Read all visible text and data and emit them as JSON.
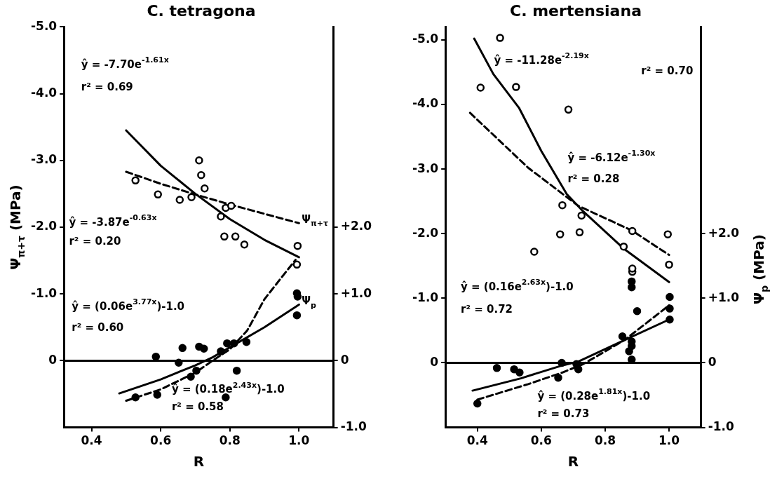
{
  "chart_data": [
    {
      "type": "scatter",
      "title": "C. tetragona",
      "xlabel": "R",
      "ylabel": "Ψ$_{π+τ}$ (MPa)",
      "xlim": [
        0.32,
        1.1
      ],
      "xticks": [
        0.4,
        0.6,
        0.8,
        {
          "value": 1.0,
          "label": "1.0"
        }
      ],
      "ylim": [
        1,
        -5
      ],
      "yticks": [
        {
          "value": -5,
          "label": "-5.0"
        },
        {
          "value": -4,
          "label": "-4.0"
        },
        {
          "value": -3,
          "label": "-3.0"
        },
        {
          "value": -2,
          "label": "-2.0"
        },
        {
          "value": -1,
          "label": "-1.0"
        },
        0
      ],
      "y2lim": [
        -1,
        5
      ],
      "y2ticks": [
        {
          "value": -1,
          "label": "-1.0"
        },
        0,
        {
          "value": 1,
          "label": "+1.0"
        },
        {
          "value": 2,
          "label": "+2.0"
        }
      ],
      "grid": false,
      "legend": false,
      "ref_lines": [
        {
          "axis": "y",
          "value": 0
        }
      ],
      "series": [
        {
          "type": "scatter",
          "color": "#000000",
          "marker": "circle",
          "x": [
            0.527,
            0.592,
            0.655,
            0.689,
            0.711,
            0.717,
            0.727,
            0.774,
            0.788,
            0.804,
            0.784,
            0.816,
            0.842,
            0.996,
            0.994
          ],
          "values": [
            -2.7,
            -2.49,
            -2.41,
            -2.45,
            -3.0,
            -2.78,
            -2.58,
            -2.16,
            -2.29,
            -2.32,
            -1.86,
            -1.86,
            -1.74,
            -1.72,
            -1.44
          ]
        },
        {
          "type": "scatter",
          "axis": "y2",
          "color": "#000000",
          "marker": "circle",
          "x": [
            0.586,
            0.652,
            0.663,
            0.711,
            0.725,
            0.774,
            0.792,
            0.812,
            0.848,
            0.82,
            0.788,
            0.687,
            0.703,
            0.59,
            0.527,
            0.994,
            0.996,
            0.994
          ],
          "values": [
            0.06,
            -0.03,
            0.19,
            0.21,
            0.18,
            0.14,
            0.26,
            0.26,
            0.28,
            -0.15,
            -0.55,
            -0.24,
            -0.15,
            -0.51,
            -0.55,
            1.01,
            0.96,
            0.68
          ]
        },
        {
          "type": "line",
          "color": "#000000",
          "marker": "none",
          "line_style": "solid",
          "x": [
            0.5,
            0.6,
            0.7,
            0.8,
            0.9,
            1.0
          ],
          "values": [
            -3.45,
            -2.92,
            -2.5,
            -2.12,
            -1.81,
            -1.55
          ]
        },
        {
          "type": "line",
          "name": "Ψ$_{π+τ}$",
          "color": "#000000",
          "marker": "none",
          "line_style": "dashed",
          "x": [
            0.5,
            0.6,
            0.7,
            0.8,
            0.9,
            1.0
          ],
          "values": [
            -2.83,
            -2.65,
            -2.49,
            -2.34,
            -2.2,
            -2.06
          ]
        },
        {
          "type": "line",
          "name": "Ψ$_{p}$",
          "axis": "y2",
          "color": "#000000",
          "marker": "none",
          "line_style": "solid",
          "x": [
            0.48,
            0.6,
            0.7,
            0.75,
            0.8,
            0.9,
            1.0
          ],
          "values": [
            -0.49,
            -0.28,
            -0.07,
            0.05,
            0.2,
            0.5,
            0.84
          ]
        },
        {
          "type": "line",
          "axis": "y2",
          "color": "#000000",
          "marker": "none",
          "line_style": "dashed",
          "x": [
            0.5,
            0.6,
            0.7,
            0.75,
            0.8,
            0.85,
            0.9,
            0.95,
            0.99
          ],
          "values": [
            -0.6,
            -0.43,
            -0.18,
            0.0,
            0.17,
            0.45,
            0.92,
            1.25,
            1.51
          ]
        }
      ],
      "annotations": [
        "ŷ = -7.70e$^{-1.61x}$",
        "r² = 0.69",
        "ŷ = -3.87e$^{-0.63x}$",
        "r² = 0.20",
        "ŷ = (0.06e$^{3.77x}$)-1.0",
        "r² = 0.60",
        "ŷ = (0.18e$^{2.43x}$)-1.0",
        "r² = 0.58"
      ]
    },
    {
      "type": "scatter",
      "title": "C. mertensiana",
      "xlabel": "R",
      "y2label": "Ψ$_{p}$ (MPa)",
      "xlim": [
        0.3,
        1.1
      ],
      "xticks": [
        0.4,
        0.6,
        0.8,
        {
          "value": 1.0,
          "label": "1.0"
        }
      ],
      "ylim": [
        1,
        -5.2
      ],
      "yticks": [
        {
          "value": -5,
          "label": "-5.0"
        },
        {
          "value": -4,
          "label": "-4.0"
        },
        {
          "value": -3,
          "label": "-3.0"
        },
        {
          "value": -2,
          "label": "-2.0"
        },
        {
          "value": -1,
          "label": "-1.0"
        },
        0
      ],
      "y2lim": [
        -1,
        5.2
      ],
      "y2ticks": [
        {
          "value": -1,
          "label": "-1.0"
        },
        0,
        {
          "value": 1,
          "label": "+1.0"
        },
        {
          "value": 2,
          "label": "+2.0"
        }
      ],
      "grid": false,
      "legend": false,
      "ref_lines": [
        {
          "axis": "y",
          "value": 0
        }
      ],
      "series": [
        {
          "type": "scatter",
          "color": "#000000",
          "marker": "circle",
          "x": [
            0.471,
            0.41,
            0.521,
            0.685,
            0.666,
            0.726,
            0.659,
            0.72,
            0.578,
            0.858,
            0.996,
            1.0,
            0.885,
            0.885,
            0.885
          ],
          "values": [
            -5.03,
            -4.26,
            -4.27,
            -3.92,
            -2.44,
            -2.28,
            -1.99,
            -2.02,
            -1.72,
            -1.8,
            -1.99,
            -1.52,
            -1.41,
            -1.46,
            -2.04
          ]
        },
        {
          "type": "scatter",
          "axis": "y2",
          "color": "#000000",
          "marker": "circle",
          "x": [
            0.883,
            0.883,
            0.9,
            1.002,
            1.002,
            1.002,
            0.854,
            0.883,
            0.883,
            0.875,
            0.883,
            0.664,
            0.716,
            0.71,
            0.461,
            0.515,
            0.532,
            0.653,
            0.4
          ],
          "values": [
            1.26,
            1.17,
            0.8,
            1.02,
            0.84,
            0.67,
            0.41,
            0.33,
            0.26,
            0.18,
            0.05,
            0.0,
            -0.1,
            -0.02,
            -0.08,
            -0.1,
            -0.15,
            -0.23,
            -0.63
          ]
        },
        {
          "type": "line",
          "color": "#000000",
          "marker": "none",
          "line_style": "solid",
          "x": [
            0.39,
            0.45,
            0.53,
            0.6,
            0.68,
            0.73,
            0.86,
            1.0
          ],
          "values": [
            -5.02,
            -4.47,
            -3.95,
            -3.28,
            -2.61,
            -2.35,
            -1.76,
            -1.25
          ]
        },
        {
          "type": "line",
          "color": "#000000",
          "marker": "none",
          "line_style": "dashed",
          "x": [
            0.377,
            0.559,
            0.716,
            0.883,
            1.0
          ],
          "values": [
            -3.87,
            -3.02,
            -2.43,
            -2.05,
            -1.67
          ]
        },
        {
          "type": "line",
          "axis": "y2",
          "color": "#000000",
          "marker": "none",
          "line_style": "solid",
          "x": [
            0.385,
            0.536,
            0.659,
            0.716,
            0.86,
            1.0
          ],
          "values": [
            -0.43,
            -0.24,
            -0.05,
            0.02,
            0.35,
            0.67
          ]
        },
        {
          "type": "line",
          "axis": "y2",
          "color": "#000000",
          "marker": "none",
          "line_style": "dashed",
          "x": [
            0.4,
            0.559,
            0.666,
            0.731,
            0.86,
            1.0
          ],
          "values": [
            -0.57,
            -0.33,
            -0.15,
            -0.02,
            0.35,
            0.89
          ]
        }
      ],
      "annotations": [
        "ŷ = -11.28e$^{-2.19x}$",
        "r² = 0.70",
        "ŷ = -6.12e$^{-1.30x}$",
        "r² = 0.28",
        "ŷ = (0.16e$^{2.63x}$)-1.0",
        "r² = 0.72",
        "ŷ = (0.28e$^{1.81x}$)-1.0",
        "r² = 0.73"
      ]
    }
  ]
}
